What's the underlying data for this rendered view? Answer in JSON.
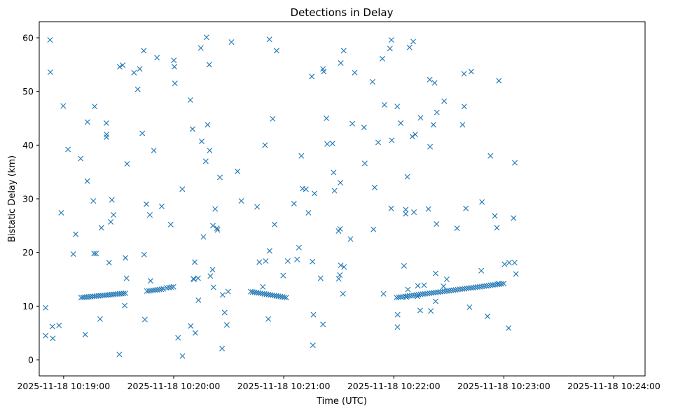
{
  "chart_data": {
    "type": "scatter",
    "title": "Detections in Delay",
    "xlabel": "Time (UTC)",
    "ylabel": "Bistatic Delay (km)",
    "marker": "x",
    "color": "#1f77b4",
    "x_unit": "seconds since 2025-11-18 10:18:00",
    "xlim": [
      46.7,
      377.0
    ],
    "ylim": [
      -3.0,
      63.0
    ],
    "x_ticks": [
      {
        "value": 60,
        "label": "2025-11-18 10:19:00"
      },
      {
        "value": 120,
        "label": "2025-11-18 10:20:00"
      },
      {
        "value": 180,
        "label": "2025-11-18 10:21:00"
      },
      {
        "value": 240,
        "label": "2025-11-18 10:22:00"
      },
      {
        "value": 300,
        "label": "2025-11-18 10:23:00"
      },
      {
        "value": 360,
        "label": "2025-11-18 10:24:00"
      }
    ],
    "y_ticks": [
      {
        "value": 0,
        "label": "0"
      },
      {
        "value": 10,
        "label": "10"
      },
      {
        "value": 20,
        "label": "20"
      },
      {
        "value": 30,
        "label": "30"
      },
      {
        "value": 40,
        "label": "40"
      },
      {
        "value": 50,
        "label": "50"
      },
      {
        "value": 60,
        "label": "60"
      }
    ],
    "tracks": [
      {
        "name": "track-1",
        "x_start": 69.5,
        "x_end": 93.7,
        "y_start": 11.6,
        "y_end": 12.4,
        "count": 24
      },
      {
        "name": "track-2",
        "x_start": 105.4,
        "x_end": 114.4,
        "y_start": 12.8,
        "y_end": 13.2,
        "count": 9
      },
      {
        "name": "track-3",
        "x_start": 116.2,
        "x_end": 119.9,
        "y_start": 13.4,
        "y_end": 13.6,
        "count": 4
      },
      {
        "name": "track-4",
        "x_start": 162.0,
        "x_end": 181.4,
        "y_start": 12.7,
        "y_end": 11.6,
        "count": 19
      },
      {
        "name": "track-5",
        "x_start": 241.5,
        "x_end": 300.0,
        "y_start": 11.6,
        "y_end": 14.2,
        "count": 50
      }
    ],
    "points": [
      [
        65.3,
        19.7
      ],
      [
        66.6,
        23.4
      ],
      [
        77.7,
        19.8
      ],
      [
        80.6,
        24.6
      ],
      [
        87.2,
        27.0
      ],
      [
        71.8,
        4.7
      ],
      [
        79.9,
        7.6
      ],
      [
        84.8,
        18.1
      ],
      [
        90.4,
        1.0
      ],
      [
        93.3,
        10.1
      ],
      [
        69.3,
        37.5
      ],
      [
        72.9,
        33.3
      ],
      [
        73.0,
        44.3
      ],
      [
        76.2,
        29.6
      ],
      [
        83.3,
        44.1
      ],
      [
        83.4,
        42.0
      ],
      [
        83.4,
        41.5
      ],
      [
        85.7,
        25.7
      ],
      [
        86.3,
        29.8
      ],
      [
        90.6,
        54.6
      ],
      [
        92.2,
        54.9
      ],
      [
        93.7,
        19.0
      ],
      [
        94.3,
        15.2
      ],
      [
        94.6,
        36.5
      ],
      [
        98.4,
        53.5
      ],
      [
        100.4,
        50.4
      ],
      [
        101.5,
        54.2
      ],
      [
        102.9,
        42.2
      ],
      [
        103.7,
        57.6
      ],
      [
        103.9,
        19.6
      ],
      [
        104.3,
        7.5
      ],
      [
        105.1,
        29.0
      ],
      [
        107.0,
        27.0
      ],
      [
        107.4,
        14.7
      ],
      [
        109.2,
        39.0
      ],
      [
        110.9,
        56.3
      ],
      [
        113.5,
        28.6
      ],
      [
        118.4,
        25.2
      ],
      [
        120.1,
        55.8
      ],
      [
        120.4,
        54.6
      ],
      [
        120.7,
        51.5
      ],
      [
        122.4,
        4.1
      ],
      [
        124.8,
        0.7
      ],
      [
        124.7,
        31.8
      ],
      [
        129.1,
        48.4
      ],
      [
        129.3,
        6.3
      ],
      [
        130.3,
        43.0
      ],
      [
        130.7,
        15.1
      ],
      [
        131.1,
        15.0
      ],
      [
        131.5,
        18.2
      ],
      [
        131.8,
        5.0
      ],
      [
        133.3,
        15.2
      ],
      [
        133.5,
        11.1
      ],
      [
        134.8,
        58.1
      ],
      [
        135.3,
        40.7
      ],
      [
        136.2,
        22.9
      ],
      [
        137.5,
        37.0
      ],
      [
        137.9,
        60.1
      ],
      [
        138.5,
        43.8
      ],
      [
        139.4,
        55.0
      ],
      [
        139.6,
        39.0
      ],
      [
        140.0,
        15.6
      ],
      [
        141.2,
        16.8
      ],
      [
        141.4,
        25.0
      ],
      [
        141.7,
        13.5
      ],
      [
        142.6,
        28.1
      ],
      [
        143.6,
        24.5
      ],
      [
        143.9,
        24.2
      ],
      [
        145.2,
        34.0
      ],
      [
        146.4,
        2.1
      ],
      [
        146.7,
        12.1
      ],
      [
        147.8,
        8.8
      ],
      [
        149.0,
        6.5
      ],
      [
        149.7,
        12.7
      ],
      [
        151.5,
        59.2
      ],
      [
        154.8,
        35.1
      ],
      [
        156.9,
        29.6
      ],
      [
        165.5,
        28.5
      ],
      [
        166.7,
        18.2
      ],
      [
        169.8,
        40.0
      ],
      [
        172.2,
        59.7
      ],
      [
        174.0,
        44.9
      ],
      [
        175.0,
        25.2
      ],
      [
        176.1,
        57.6
      ],
      [
        179.7,
        15.7
      ],
      [
        168.6,
        13.6
      ],
      [
        170.2,
        18.4
      ],
      [
        171.6,
        7.6
      ],
      [
        172.3,
        20.3
      ],
      [
        182.2,
        18.4
      ],
      [
        185.6,
        29.1
      ],
      [
        187.3,
        18.7
      ],
      [
        188.3,
        20.9
      ],
      [
        189.6,
        38.0
      ],
      [
        190.3,
        31.9
      ],
      [
        192.1,
        31.8
      ],
      [
        193.5,
        27.4
      ],
      [
        195.3,
        52.8
      ],
      [
        195.7,
        18.3
      ],
      [
        196.2,
        8.4
      ],
      [
        196.8,
        31.0
      ],
      [
        195.9,
        2.7
      ],
      [
        200.1,
        15.2
      ],
      [
        201.4,
        54.2
      ],
      [
        201.8,
        53.7
      ],
      [
        201.4,
        6.6
      ],
      [
        203.3,
        45.0
      ],
      [
        203.7,
        40.2
      ],
      [
        206.6,
        40.3
      ],
      [
        207.2,
        34.9
      ],
      [
        207.7,
        31.5
      ],
      [
        209.9,
        24.0
      ],
      [
        210.0,
        15.1
      ],
      [
        210.6,
        15.8
      ],
      [
        210.7,
        24.4
      ],
      [
        210.9,
        33.0
      ],
      [
        211.1,
        55.3
      ],
      [
        211.1,
        17.6
      ],
      [
        212.3,
        12.3
      ],
      [
        212.7,
        57.6
      ],
      [
        212.9,
        17.3
      ],
      [
        216.4,
        22.5
      ],
      [
        217.4,
        44.0
      ],
      [
        218.7,
        53.5
      ],
      [
        223.8,
        43.3
      ],
      [
        224.2,
        36.6
      ],
      [
        228.4,
        51.8
      ],
      [
        228.9,
        24.3
      ],
      [
        229.6,
        32.1
      ],
      [
        231.5,
        40.5
      ],
      [
        233.8,
        56.1
      ],
      [
        234.4,
        12.3
      ],
      [
        234.9,
        47.5
      ],
      [
        237.9,
        58.0
      ],
      [
        238.7,
        59.6
      ],
      [
        238.6,
        28.2
      ],
      [
        238.9,
        40.9
      ],
      [
        241.9,
        47.2
      ],
      [
        242.0,
        6.1
      ],
      [
        242.1,
        8.4
      ],
      [
        243.8,
        44.1
      ],
      [
        245.6,
        17.5
      ],
      [
        246.5,
        27.2
      ],
      [
        246.5,
        28.0
      ],
      [
        246.9,
        11.7
      ],
      [
        247.4,
        34.1
      ],
      [
        247.7,
        13.1
      ],
      [
        248.6,
        58.2
      ],
      [
        250.1,
        41.6
      ],
      [
        250.6,
        59.3
      ],
      [
        251.0,
        27.5
      ],
      [
        251.7,
        42.0
      ],
      [
        252.9,
        11.8
      ],
      [
        253.1,
        13.8
      ],
      [
        254.4,
        9.2
      ],
      [
        254.6,
        45.1
      ],
      [
        256.5,
        13.9
      ],
      [
        258.9,
        28.1
      ],
      [
        259.6,
        52.2
      ],
      [
        259.8,
        39.7
      ],
      [
        260.2,
        9.1
      ],
      [
        261.6,
        43.8
      ],
      [
        262.3,
        51.6
      ],
      [
        262.8,
        16.1
      ],
      [
        262.8,
        10.9
      ],
      [
        263.3,
        25.3
      ],
      [
        263.5,
        46.1
      ],
      [
        267.1,
        13.7
      ],
      [
        267.5,
        48.2
      ],
      [
        268.9,
        15.0
      ],
      [
        274.5,
        24.5
      ],
      [
        277.5,
        43.8
      ],
      [
        278.3,
        53.3
      ],
      [
        278.4,
        47.2
      ],
      [
        279.3,
        28.2
      ],
      [
        281.3,
        9.8
      ],
      [
        282.2,
        53.7
      ],
      [
        287.7,
        16.6
      ],
      [
        288.1,
        29.4
      ],
      [
        291.1,
        8.1
      ],
      [
        292.7,
        38.0
      ],
      [
        295.1,
        26.8
      ],
      [
        296.2,
        24.6
      ],
      [
        296.9,
        14.2
      ],
      [
        297.3,
        52.0
      ],
      [
        300.4,
        17.8
      ],
      [
        302.6,
        5.9
      ],
      [
        302.9,
        18.1
      ],
      [
        305.3,
        26.4
      ],
      [
        305.9,
        18.1
      ],
      [
        306.0,
        36.7
      ],
      [
        306.6,
        16.0
      ],
      [
        50.2,
        9.7
      ],
      [
        50.2,
        4.5
      ],
      [
        52.6,
        59.6
      ],
      [
        52.8,
        53.6
      ],
      [
        53.9,
        6.2
      ],
      [
        54.1,
        4.0
      ],
      [
        57.5,
        6.4
      ],
      [
        58.7,
        27.4
      ],
      [
        59.8,
        47.3
      ],
      [
        62.4,
        39.2
      ],
      [
        76.6,
        19.8
      ],
      [
        76.9,
        47.2
      ]
    ]
  }
}
